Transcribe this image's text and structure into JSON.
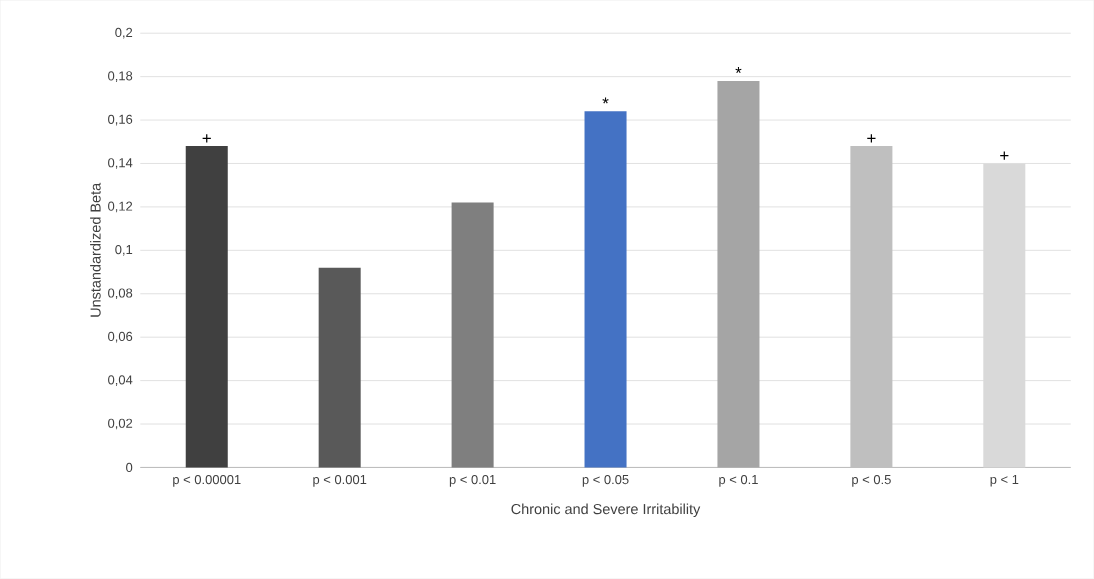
{
  "chart_data": {
    "type": "bar",
    "xlabel": "Chronic and Severe Irritability",
    "ylabel": "Unstandardized Beta",
    "categories": [
      "p < 0.00001",
      "p < 0.001",
      "p < 0.01",
      "p < 0.05",
      "p < 0.1",
      "p < 0.5",
      "p < 1"
    ],
    "values": [
      0.148,
      0.092,
      0.122,
      0.164,
      0.178,
      0.148,
      0.14
    ],
    "colors": [
      "#404040",
      "#595959",
      "#7f7f7f",
      "#4472c4",
      "#a5a5a5",
      "#bfbfbf",
      "#d9d9d9"
    ],
    "ylim": [
      0,
      0.2
    ],
    "yticks": [
      0,
      {
        "value": 0.02,
        "label": "0,02"
      },
      {
        "value": 0.04,
        "label": "0,04"
      },
      {
        "value": 0.06,
        "label": "0,06"
      },
      {
        "value": 0.08,
        "label": "0,08"
      },
      {
        "value": 0.1,
        "label": "0,1"
      },
      {
        "value": 0.12,
        "label": "0,12"
      },
      {
        "value": 0.14,
        "label": "0,14"
      },
      {
        "value": 0.16,
        "label": "0,16"
      },
      {
        "value": 0.18,
        "label": "0,18"
      },
      {
        "value": 0.2,
        "label": "0,2"
      }
    ],
    "grid": "y",
    "annotations": [
      {
        "text": "+",
        "x": "p < 0.00001",
        "y": 0.148
      },
      {
        "text": "*",
        "x": "p < 0.05",
        "y": 0.164
      },
      {
        "text": "*",
        "x": "p < 0.1",
        "y": 0.178
      },
      {
        "text": "+",
        "x": "p < 0.5",
        "y": 0.148
      },
      {
        "text": "+",
        "x": "p < 1",
        "y": 0.14
      }
    ]
  }
}
